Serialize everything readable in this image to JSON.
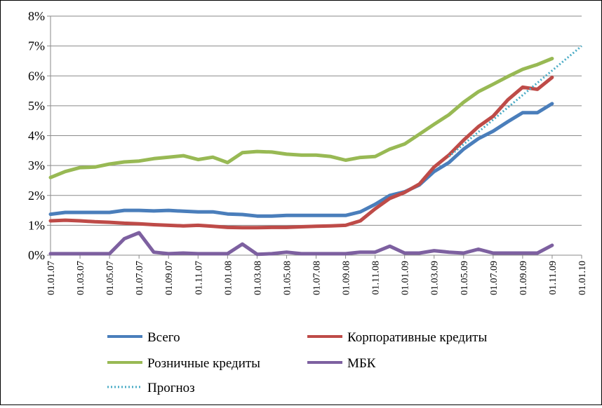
{
  "chart_data": {
    "type": "line",
    "title": "",
    "xlabel": "",
    "ylabel": "",
    "ylim": [
      0,
      8
    ],
    "y_ticks": [
      "0%",
      "1%",
      "2%",
      "3%",
      "4%",
      "5%",
      "6%",
      "7%",
      "8%"
    ],
    "x_ticks": [
      "01.01.07",
      "01.03.07",
      "01.05.07",
      "01.07.07",
      "01.09.07",
      "01.11.07",
      "01.01.08",
      "01.03.08",
      "01.05.08",
      "01.07.08",
      "01.09.08",
      "01.11.08",
      "01.01.09",
      "01.03.09",
      "01.05.09",
      "01.07.09",
      "01.09.09",
      "01.11.09",
      "01.01.10"
    ],
    "grid": "horizontal",
    "legend_position": "bottom",
    "series": [
      {
        "name": "Всего",
        "color": "#4a7ebb",
        "style": "solid",
        "x": [
          "2007-01",
          "2007-02",
          "2007-03",
          "2007-04",
          "2007-05",
          "2007-06",
          "2007-07",
          "2007-08",
          "2007-09",
          "2007-10",
          "2007-11",
          "2007-12",
          "2008-01",
          "2008-02",
          "2008-03",
          "2008-04",
          "2008-05",
          "2008-06",
          "2008-07",
          "2008-08",
          "2008-09",
          "2008-10",
          "2008-11",
          "2008-12",
          "2009-01",
          "2009-02",
          "2009-03",
          "2009-04",
          "2009-05",
          "2009-06",
          "2009-07",
          "2009-08",
          "2009-09",
          "2009-10",
          "2009-11"
        ],
        "values": [
          1.37,
          1.43,
          1.43,
          1.43,
          1.43,
          1.5,
          1.5,
          1.48,
          1.5,
          1.47,
          1.45,
          1.45,
          1.38,
          1.36,
          1.31,
          1.31,
          1.33,
          1.33,
          1.33,
          1.33,
          1.33,
          1.45,
          1.7,
          2.0,
          2.12,
          2.35,
          2.8,
          3.1,
          3.55,
          3.9,
          4.15,
          4.47,
          4.77,
          4.77,
          5.07
        ]
      },
      {
        "name": "Корпоративные кредиты",
        "color": "#be4b48",
        "style": "solid",
        "x": [
          "2007-01",
          "2007-02",
          "2007-03",
          "2007-04",
          "2007-05",
          "2007-06",
          "2007-07",
          "2007-08",
          "2007-09",
          "2007-10",
          "2007-11",
          "2007-12",
          "2008-01",
          "2008-02",
          "2008-03",
          "2008-04",
          "2008-05",
          "2008-06",
          "2008-07",
          "2008-08",
          "2008-09",
          "2008-10",
          "2008-11",
          "2008-12",
          "2009-01",
          "2009-02",
          "2009-03",
          "2009-04",
          "2009-05",
          "2009-06",
          "2009-07",
          "2009-08",
          "2009-09",
          "2009-10",
          "2009-11"
        ],
        "values": [
          1.15,
          1.17,
          1.15,
          1.12,
          1.1,
          1.07,
          1.05,
          1.02,
          1.0,
          0.98,
          1.0,
          0.97,
          0.93,
          0.92,
          0.92,
          0.93,
          0.93,
          0.95,
          0.97,
          0.98,
          1.0,
          1.15,
          1.55,
          1.9,
          2.1,
          2.38,
          2.95,
          3.35,
          3.85,
          4.3,
          4.65,
          5.2,
          5.62,
          5.55,
          5.95
        ]
      },
      {
        "name": "Розничные кредиты",
        "color": "#98b954",
        "style": "solid",
        "x": [
          "2007-01",
          "2007-02",
          "2007-03",
          "2007-04",
          "2007-05",
          "2007-06",
          "2007-07",
          "2007-08",
          "2007-09",
          "2007-10",
          "2007-11",
          "2007-12",
          "2008-01",
          "2008-02",
          "2008-03",
          "2008-04",
          "2008-05",
          "2008-06",
          "2008-07",
          "2008-08",
          "2008-09",
          "2008-10",
          "2008-11",
          "2008-12",
          "2009-01",
          "2009-02",
          "2009-03",
          "2009-04",
          "2009-05",
          "2009-06",
          "2009-07",
          "2009-08",
          "2009-09",
          "2009-10",
          "2009-11"
        ],
        "values": [
          2.6,
          2.8,
          2.93,
          2.95,
          3.05,
          3.12,
          3.15,
          3.23,
          3.28,
          3.33,
          3.2,
          3.28,
          3.1,
          3.43,
          3.47,
          3.45,
          3.38,
          3.35,
          3.35,
          3.3,
          3.18,
          3.27,
          3.3,
          3.55,
          3.72,
          4.05,
          4.38,
          4.7,
          5.12,
          5.47,
          5.72,
          5.98,
          6.22,
          6.38,
          6.58
        ]
      },
      {
        "name": "МБК",
        "color": "#7d60a0",
        "style": "solid",
        "x": [
          "2007-01",
          "2007-02",
          "2007-03",
          "2007-04",
          "2007-05",
          "2007-06",
          "2007-07",
          "2007-08",
          "2007-09",
          "2007-10",
          "2007-11",
          "2007-12",
          "2008-01",
          "2008-02",
          "2008-03",
          "2008-04",
          "2008-05",
          "2008-06",
          "2008-07",
          "2008-08",
          "2008-09",
          "2008-10",
          "2008-11",
          "2008-12",
          "2009-01",
          "2009-02",
          "2009-03",
          "2009-04",
          "2009-05",
          "2009-06",
          "2009-07",
          "2009-08",
          "2009-09",
          "2009-10",
          "2009-11"
        ],
        "values": [
          0.05,
          0.05,
          0.05,
          0.05,
          0.05,
          0.55,
          0.75,
          0.1,
          0.05,
          0.07,
          0.05,
          0.05,
          0.05,
          0.37,
          0.03,
          0.05,
          0.1,
          0.05,
          0.05,
          0.05,
          0.05,
          0.1,
          0.1,
          0.3,
          0.07,
          0.07,
          0.15,
          0.1,
          0.07,
          0.2,
          0.07,
          0.07,
          0.07,
          0.07,
          0.33
        ]
      },
      {
        "name": "Прогноз",
        "color": "#4bacc6",
        "style": "dotted",
        "x": [
          "2009-04",
          "2010-01"
        ],
        "values": [
          3.3,
          7.0
        ]
      }
    ]
  }
}
